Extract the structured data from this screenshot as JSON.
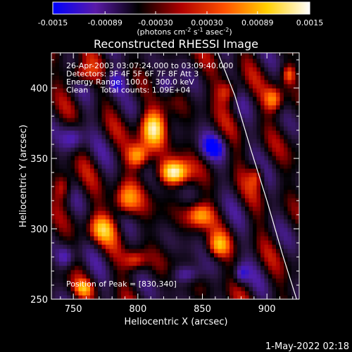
{
  "chart_data": {
    "type": "heatmap",
    "title": "Reconstructed RHESSI Image",
    "xlabel": "Heliocentric X (arcsec)",
    "ylabel": "Heliocentric Y (arcsec)",
    "xlim": [
      733,
      925
    ],
    "ylim": [
      250,
      425
    ],
    "xticks": [
      750,
      800,
      850,
      900
    ],
    "yticks": [
      250,
      300,
      350,
      400
    ],
    "colorbar": {
      "range": [
        -0.0015,
        0.0015
      ],
      "tick_values": [
        -0.0015,
        -0.00089,
        -0.0003,
        0.0003,
        0.00089,
        0.0015
      ],
      "tick_labels": [
        "-0.0015",
        "-0.00089",
        "-0.00030",
        "0.00030",
        "0.00089",
        "0.0015"
      ],
      "unit_prefix": "(photons cm",
      "unit_sup1": "-2",
      "unit_mid": " s",
      "unit_sup2": "-1",
      "unit_mid2": " asec",
      "unit_sup3": "-2",
      "unit_suffix": ")",
      "colors": [
        "#0000ff",
        "#5a1aa8",
        "#000000",
        "#b00000",
        "#ff5000",
        "#ffd000",
        "#ffffff"
      ]
    },
    "annotations": [
      "26-Apr-2003 03:07:24.000 to 03:09:40.000",
      "Detectors: 3F 4F 5F 6F 7F 8F Att 3",
      "Energy Range: 100.0 - 300.0 keV",
      "Clean     Total counts: 1.09E+04"
    ],
    "peak_label": "Position of Peak = [830,340]",
    "peak": [
      830,
      340
    ],
    "limb_curve": [
      [
        862,
        425
      ],
      [
        875,
        395
      ],
      [
        888,
        355
      ],
      [
        900,
        320
      ],
      [
        912,
        282
      ],
      [
        923,
        250
      ]
    ],
    "sources": [
      {
        "x": 828,
        "y": 340,
        "amp": 1.0,
        "sx": 8,
        "sy": 6
      },
      {
        "x": 812,
        "y": 372,
        "amp": 0.95,
        "sx": 7,
        "sy": 9
      },
      {
        "x": 800,
        "y": 352,
        "amp": 0.65,
        "sx": 6,
        "sy": 6
      },
      {
        "x": 790,
        "y": 320,
        "amp": 0.6,
        "sx": 7,
        "sy": 8
      },
      {
        "x": 772,
        "y": 300,
        "amp": 0.55,
        "sx": 8,
        "sy": 7
      },
      {
        "x": 848,
        "y": 310,
        "amp": 0.6,
        "sx": 7,
        "sy": 6
      },
      {
        "x": 862,
        "y": 288,
        "amp": 0.55,
        "sx": 6,
        "sy": 6
      },
      {
        "x": 870,
        "y": 398,
        "amp": 0.45,
        "sx": 6,
        "sy": 6
      },
      {
        "x": 905,
        "y": 392,
        "amp": 0.55,
        "sx": 5,
        "sy": 6
      },
      {
        "x": 917,
        "y": 410,
        "amp": 0.5,
        "sx": 4,
        "sy": 5
      },
      {
        "x": 758,
        "y": 258,
        "amp": 0.45,
        "sx": 5,
        "sy": 4
      },
      {
        "x": 798,
        "y": 278,
        "amp": 0.45,
        "sx": 6,
        "sy": 5
      },
      {
        "x": 742,
        "y": 330,
        "amp": 0.45,
        "sx": 5,
        "sy": 7
      },
      {
        "x": 755,
        "y": 410,
        "amp": 0.45,
        "sx": 7,
        "sy": 5
      },
      {
        "x": 892,
        "y": 338,
        "amp": 0.4,
        "sx": 4,
        "sy": 6
      },
      {
        "x": 782,
        "y": 404,
        "amp": -0.45,
        "sx": 6,
        "sy": 6
      },
      {
        "x": 750,
        "y": 365,
        "amp": -0.45,
        "sx": 6,
        "sy": 7
      },
      {
        "x": 858,
        "y": 358,
        "amp": -0.45,
        "sx": 7,
        "sy": 6
      },
      {
        "x": 838,
        "y": 268,
        "amp": -0.45,
        "sx": 8,
        "sy": 5
      },
      {
        "x": 744,
        "y": 280,
        "amp": -0.4,
        "sx": 5,
        "sy": 6
      },
      {
        "x": 880,
        "y": 268,
        "amp": -0.4,
        "sx": 4,
        "sy": 5
      },
      {
        "x": 822,
        "y": 402,
        "amp": -0.35,
        "sx": 6,
        "sy": 5
      }
    ]
  },
  "footer": {
    "date": "1-May-2022 02:18"
  }
}
